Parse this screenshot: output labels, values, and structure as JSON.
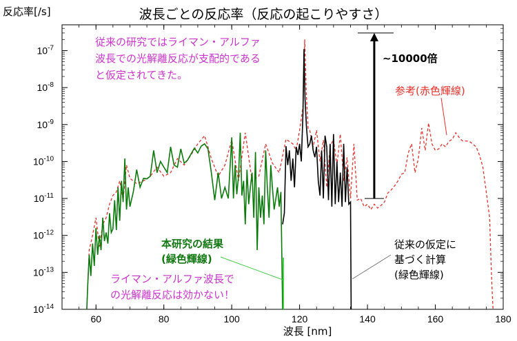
{
  "chart_data": {
    "type": "line",
    "title": "波長ごとの反応率（反応の起こりやすさ）",
    "xlabel": "波長 [nm]",
    "ylabel": "反応率[/s]",
    "xlim": [
      50,
      180
    ],
    "ylim": [
      1e-14,
      5e-07
    ],
    "yscale": "log",
    "x_ticks": [
      60,
      80,
      100,
      120,
      140,
      160,
      180
    ],
    "y_ticks": [
      {
        "value": 1e-07,
        "base": "10",
        "exp": "-7"
      },
      {
        "value": 1e-08,
        "base": "10",
        "exp": "-8"
      },
      {
        "value": 1e-09,
        "base": "10",
        "exp": "-9"
      },
      {
        "value": 1e-10,
        "base": "10",
        "exp": "-10"
      },
      {
        "value": 1e-11,
        "base": "10",
        "exp": "-11"
      },
      {
        "value": 1e-12,
        "base": "10",
        "exp": "-12"
      },
      {
        "value": 1e-13,
        "base": "10",
        "exp": "-13"
      },
      {
        "value": 1e-14,
        "base": "10",
        "exp": "-14"
      }
    ],
    "series": [
      {
        "color": "#0a7a0a",
        "style": "solid",
        "x": [
          57.3,
          57.6,
          58,
          58.5,
          59,
          59.5,
          60,
          60.5,
          61,
          61.5,
          62,
          62.5,
          63,
          63.5,
          64,
          64.5,
          65,
          65.5,
          66,
          66.5,
          67,
          67.5,
          68,
          68.5,
          69,
          69.5,
          70,
          71,
          72,
          73,
          74,
          75,
          76,
          77,
          78,
          79,
          80,
          81,
          82,
          83,
          84,
          85,
          86,
          87,
          88,
          89,
          90,
          91,
          92,
          93,
          94,
          95,
          96,
          97,
          98,
          99,
          100,
          100.5,
          101,
          101.5,
          102,
          102.5,
          103,
          103.5,
          104,
          104.5,
          105,
          105.5,
          106,
          106.5,
          107,
          107.5,
          108,
          108.5,
          109,
          109.5,
          110,
          110.5,
          111,
          111.5,
          112,
          112.5,
          113,
          113.5,
          114,
          114.5,
          115
        ],
        "y": [
          1e-14,
          5e-14,
          3e-13,
          8e-14,
          6e-13,
          1.5e-13,
          1.6e-12,
          3e-13,
          1e-12,
          4e-13,
          3e-12,
          7e-13,
          1.2e-12,
          6e-13,
          4e-12,
          1.2e-12,
          1.5e-12,
          9e-12,
          1.4e-12,
          2e-11,
          2.5e-12,
          3e-11,
          8e-12,
          1.2e-10,
          5e-12,
          2e-11,
          6e-12,
          1.5e-11,
          6e-11,
          2e-11,
          3.5e-11,
          3.4e-11,
          4e-11,
          2e-10,
          5e-11,
          1e-10,
          7e-11,
          5e-11,
          2.5e-10,
          8e-11,
          7e-11,
          2.2e-10,
          9e-11,
          1.1e-10,
          1.6e-10,
          2.3e-10,
          1.7e-10,
          2.6e-10,
          3e-10,
          2.2e-10,
          5e-11,
          9e-12,
          5e-11,
          1e-11,
          2e-11,
          1e-11,
          4.5e-10,
          1e-11,
          8e-11,
          1.3e-11,
          4e-11,
          6e-10,
          1.2e-11,
          3e-11,
          2e-12,
          6e-11,
          7e-12,
          2e-11,
          5e-11,
          3e-12,
          1.8e-10,
          4e-13,
          2e-11,
          3e-12,
          1.2e-11,
          2e-12,
          2e-10,
          2e-11,
          3e-12,
          8e-11,
          2e-11,
          5e-12,
          1e-11,
          2e-11,
          6e-12,
          1.5e-11,
          1e-14
        ]
      },
      {
        "color": "#000000",
        "style": "solid",
        "x": [
          115,
          115.5,
          116,
          116.5,
          117,
          117.5,
          118,
          118.5,
          119,
          119.5,
          120,
          120.5,
          121,
          121.3,
          121.6,
          122,
          122.5,
          123,
          123.5,
          124,
          124.5,
          125,
          125.5,
          126,
          126.5,
          127,
          127.5,
          128,
          128.5,
          129,
          129.5,
          130,
          130.5,
          131,
          131.5,
          132,
          132.5,
          133,
          133.5,
          134,
          134.5,
          135,
          135.2
        ],
        "y": [
          2e-12,
          4e-12,
          2.6e-10,
          8e-11,
          2e-10,
          3e-11,
          1.2e-10,
          2e-11,
          2.5e-10,
          1.5e-10,
          3e-10,
          1e-10,
          2e-09,
          1.1e-07,
          5e-09,
          9e-10,
          2.5e-10,
          3e-10,
          5e-10,
          2e-10,
          1.3e-10,
          2.5e-10,
          3e-11,
          1.2e-11,
          2e-10,
          1e-11,
          5e-10,
          2.5e-10,
          9e-12,
          3e-10,
          6e-12,
          5.5e-10,
          7e-12,
          1e-10,
          8e-12,
          5e-11,
          6e-12,
          3e-10,
          8e-12,
          7e-11,
          7e-12,
          8e-12,
          1e-14
        ]
      },
      {
        "name": "参考(赤色輝線)",
        "color": "#e8302a",
        "style": "dashed",
        "x": [
          57.3,
          58,
          59,
          60,
          61,
          62,
          63,
          64,
          65,
          66,
          67,
          68,
          69,
          70,
          72,
          74,
          76,
          78,
          80,
          82,
          84,
          86,
          88,
          90,
          92,
          94,
          96,
          98,
          100,
          102,
          104,
          106,
          108,
          110,
          112,
          114,
          116,
          118,
          119,
          120,
          121,
          121.5,
          122,
          122.5,
          123,
          124,
          125,
          126,
          127,
          128,
          129,
          130,
          131,
          132,
          133,
          134,
          135,
          136,
          137,
          138,
          139,
          140,
          141,
          142,
          143,
          144,
          145,
          146,
          147,
          148,
          149,
          150,
          151,
          152,
          153,
          154,
          155,
          156,
          157,
          158,
          159,
          160,
          161,
          162,
          163,
          164,
          165,
          166,
          167,
          168,
          169,
          170,
          171,
          172,
          173,
          174,
          175,
          176,
          176.5,
          177
        ],
        "y": [
          1e-14,
          4e-13,
          1e-12,
          3e-12,
          5e-13,
          2e-12,
          3e-12,
          7e-12,
          1.2e-11,
          1.5e-11,
          3e-11,
          9e-12,
          8e-11,
          3.5e-11,
          2.5e-11,
          3e-11,
          4e-11,
          7e-11,
          4e-11,
          5e-11,
          1.2e-10,
          8e-11,
          1.5e-10,
          3e-10,
          5e-10,
          1.2e-10,
          4e-11,
          8e-11,
          3.8e-10,
          3e-11,
          6e-10,
          3e-11,
          4e-11,
          3e-10,
          9e-11,
          5e-11,
          4e-10,
          3e-10,
          2e-10,
          7e-10,
          3e-09,
          2e-07,
          6e-09,
          8e-10,
          7e-10,
          2.5e-10,
          7e-10,
          1e-10,
          3.8e-10,
          2e-11,
          2.5e-10,
          4e-10,
          8e-11,
          5.5e-10,
          3e-11,
          1.3e-10,
          1e-11,
          3e-10,
          9e-12,
          1e-11,
          6e-12,
          7e-12,
          5e-12,
          7e-12,
          5.5e-12,
          6.5e-12,
          8e-12,
          1.4e-11,
          1.7e-11,
          2.2e-11,
          3e-11,
          4.5e-11,
          5e-11,
          1.7e-10,
          3e-10,
          5e-11,
          1.2e-10,
          8e-10,
          2e-10,
          1.1e-09,
          3e-10,
          2e-10,
          2.2e-10,
          3e-10,
          2.5e-10,
          3.5e-10,
          4e-10,
          6e-10,
          4.5e-10,
          3.6e-10,
          3.6e-10,
          3.5e-10,
          3e-10,
          2.5e-10,
          1.5e-10,
          7e-11,
          1.5e-11,
          3e-12,
          1e-13,
          1e-14
        ]
      },
      {
        "color": "#22cc22",
        "style": "solid",
        "x": [
          115.2,
          115.2
        ],
        "y": [
          1e-14,
          2.5e-13
        ]
      }
    ],
    "arrow": {
      "x": 142,
      "y_from": 1e-11,
      "y_to": 3e-07,
      "label": "~10000倍"
    },
    "annotations": {
      "assumption": [
        "従来の研究ではライマン・アルファ",
        "波長での光解離反応が支配的である",
        "と仮定されてきた。"
      ],
      "reference_label": "参考(赤色輝線)",
      "this_study": [
        "本研究の結果",
        "(緑色輝線)"
      ],
      "conventional": [
        "従来の仮定に",
        "基づく計算",
        "(緑色輝線)"
      ],
      "lyman_note": [
        "ライマン・アルファ波長で",
        "の光解離反応は効かない！"
      ]
    },
    "annotation_colors": {
      "assumption": "#cc33cc",
      "reference": "#e8302a",
      "this_study": "#117711",
      "conventional": "#000000",
      "pointer_green": "#44cc44",
      "pointer_gray": "#777777"
    }
  }
}
